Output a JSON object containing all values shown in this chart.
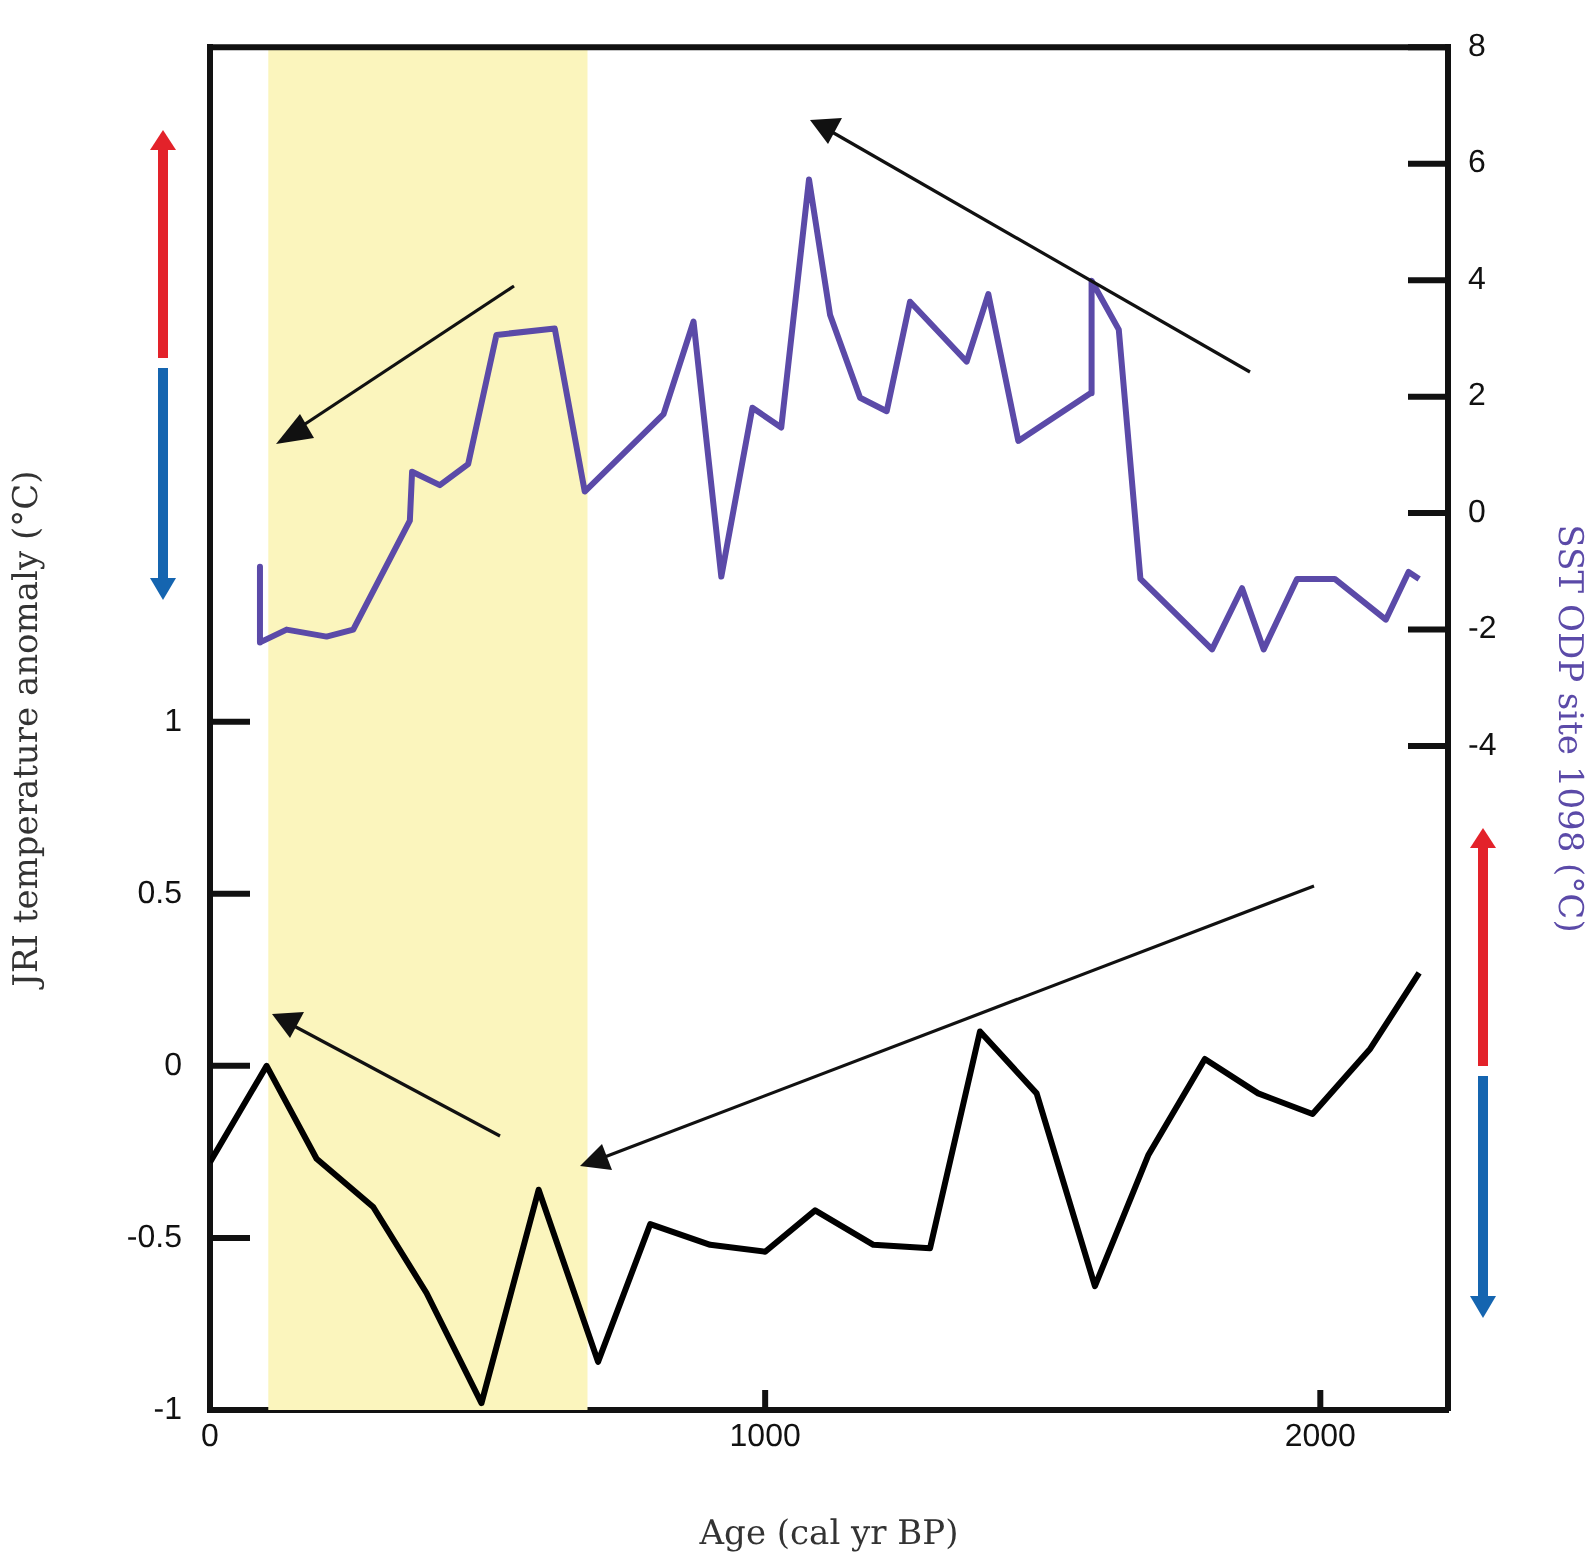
{
  "chart_data": {
    "type": "line",
    "xlabel": "Age (cal yr BP)",
    "ylabel": "JRI temperature anomaly (°C)",
    "y2label": "SST ODP site 1098 (°C)",
    "xlim": [
      0,
      2230
    ],
    "xticks": [
      0,
      1000,
      2000
    ],
    "ylim": [
      -1,
      2.96
    ],
    "yticks": [
      -1,
      -0.5,
      0,
      0.5,
      1
    ],
    "y2lim": [
      -15.4,
      8
    ],
    "y2ticks": [
      -4,
      -2,
      0,
      2,
      4,
      6,
      8
    ],
    "grid": false,
    "marker": "none",
    "line_style": "solid",
    "bands": [
      {
        "axis": "x",
        "from": 105,
        "to": 680,
        "color": "#fbf5bd"
      }
    ],
    "series": [
      {
        "color": "#5b4aa8",
        "axis": "y2",
        "x": [
          90,
          90,
          138,
          210,
          258,
          360,
          364,
          414,
          465,
          516,
          621,
          675,
          817,
          871,
          921,
          977,
          1029,
          1079,
          1117,
          1171,
          1219,
          1261,
          1363,
          1402,
          1456,
          1586,
          1588,
          1637,
          1676,
          1805,
          1859,
          1898,
          1958,
          2026,
          2118,
          2159,
          2178
        ],
        "values": [
          -0.92,
          -2.22,
          -2.0,
          -2.12,
          -2.0,
          -0.13,
          0.71,
          0.48,
          0.84,
          3.06,
          3.17,
          0.37,
          1.7,
          3.29,
          -1.09,
          1.81,
          1.47,
          5.73,
          3.4,
          1.98,
          1.75,
          3.63,
          2.6,
          3.76,
          1.24,
          2.06,
          3.99,
          3.15,
          -1.13,
          -2.34,
          -1.29,
          -2.34,
          -1.13,
          -1.13,
          -1.83,
          -1.01,
          -1.13
        ]
      },
      {
        "color": "#000000",
        "axis": "y",
        "x": [
          0,
          102,
          192,
          294,
          390,
          489,
          592,
          699,
          793,
          901,
          1000,
          1090,
          1195,
          1297,
          1387,
          1489,
          1594,
          1690,
          1792,
          1888,
          1986,
          2090,
          2178
        ],
        "values": [
          -0.28,
          0.0,
          -0.27,
          -0.41,
          -0.66,
          -0.98,
          -0.36,
          -0.86,
          -0.46,
          -0.52,
          -0.54,
          -0.42,
          -0.52,
          -0.53,
          0.1,
          -0.08,
          -0.64,
          -0.26,
          0.02,
          -0.08,
          -0.14,
          0.05,
          0.27
        ]
      }
    ]
  }
}
